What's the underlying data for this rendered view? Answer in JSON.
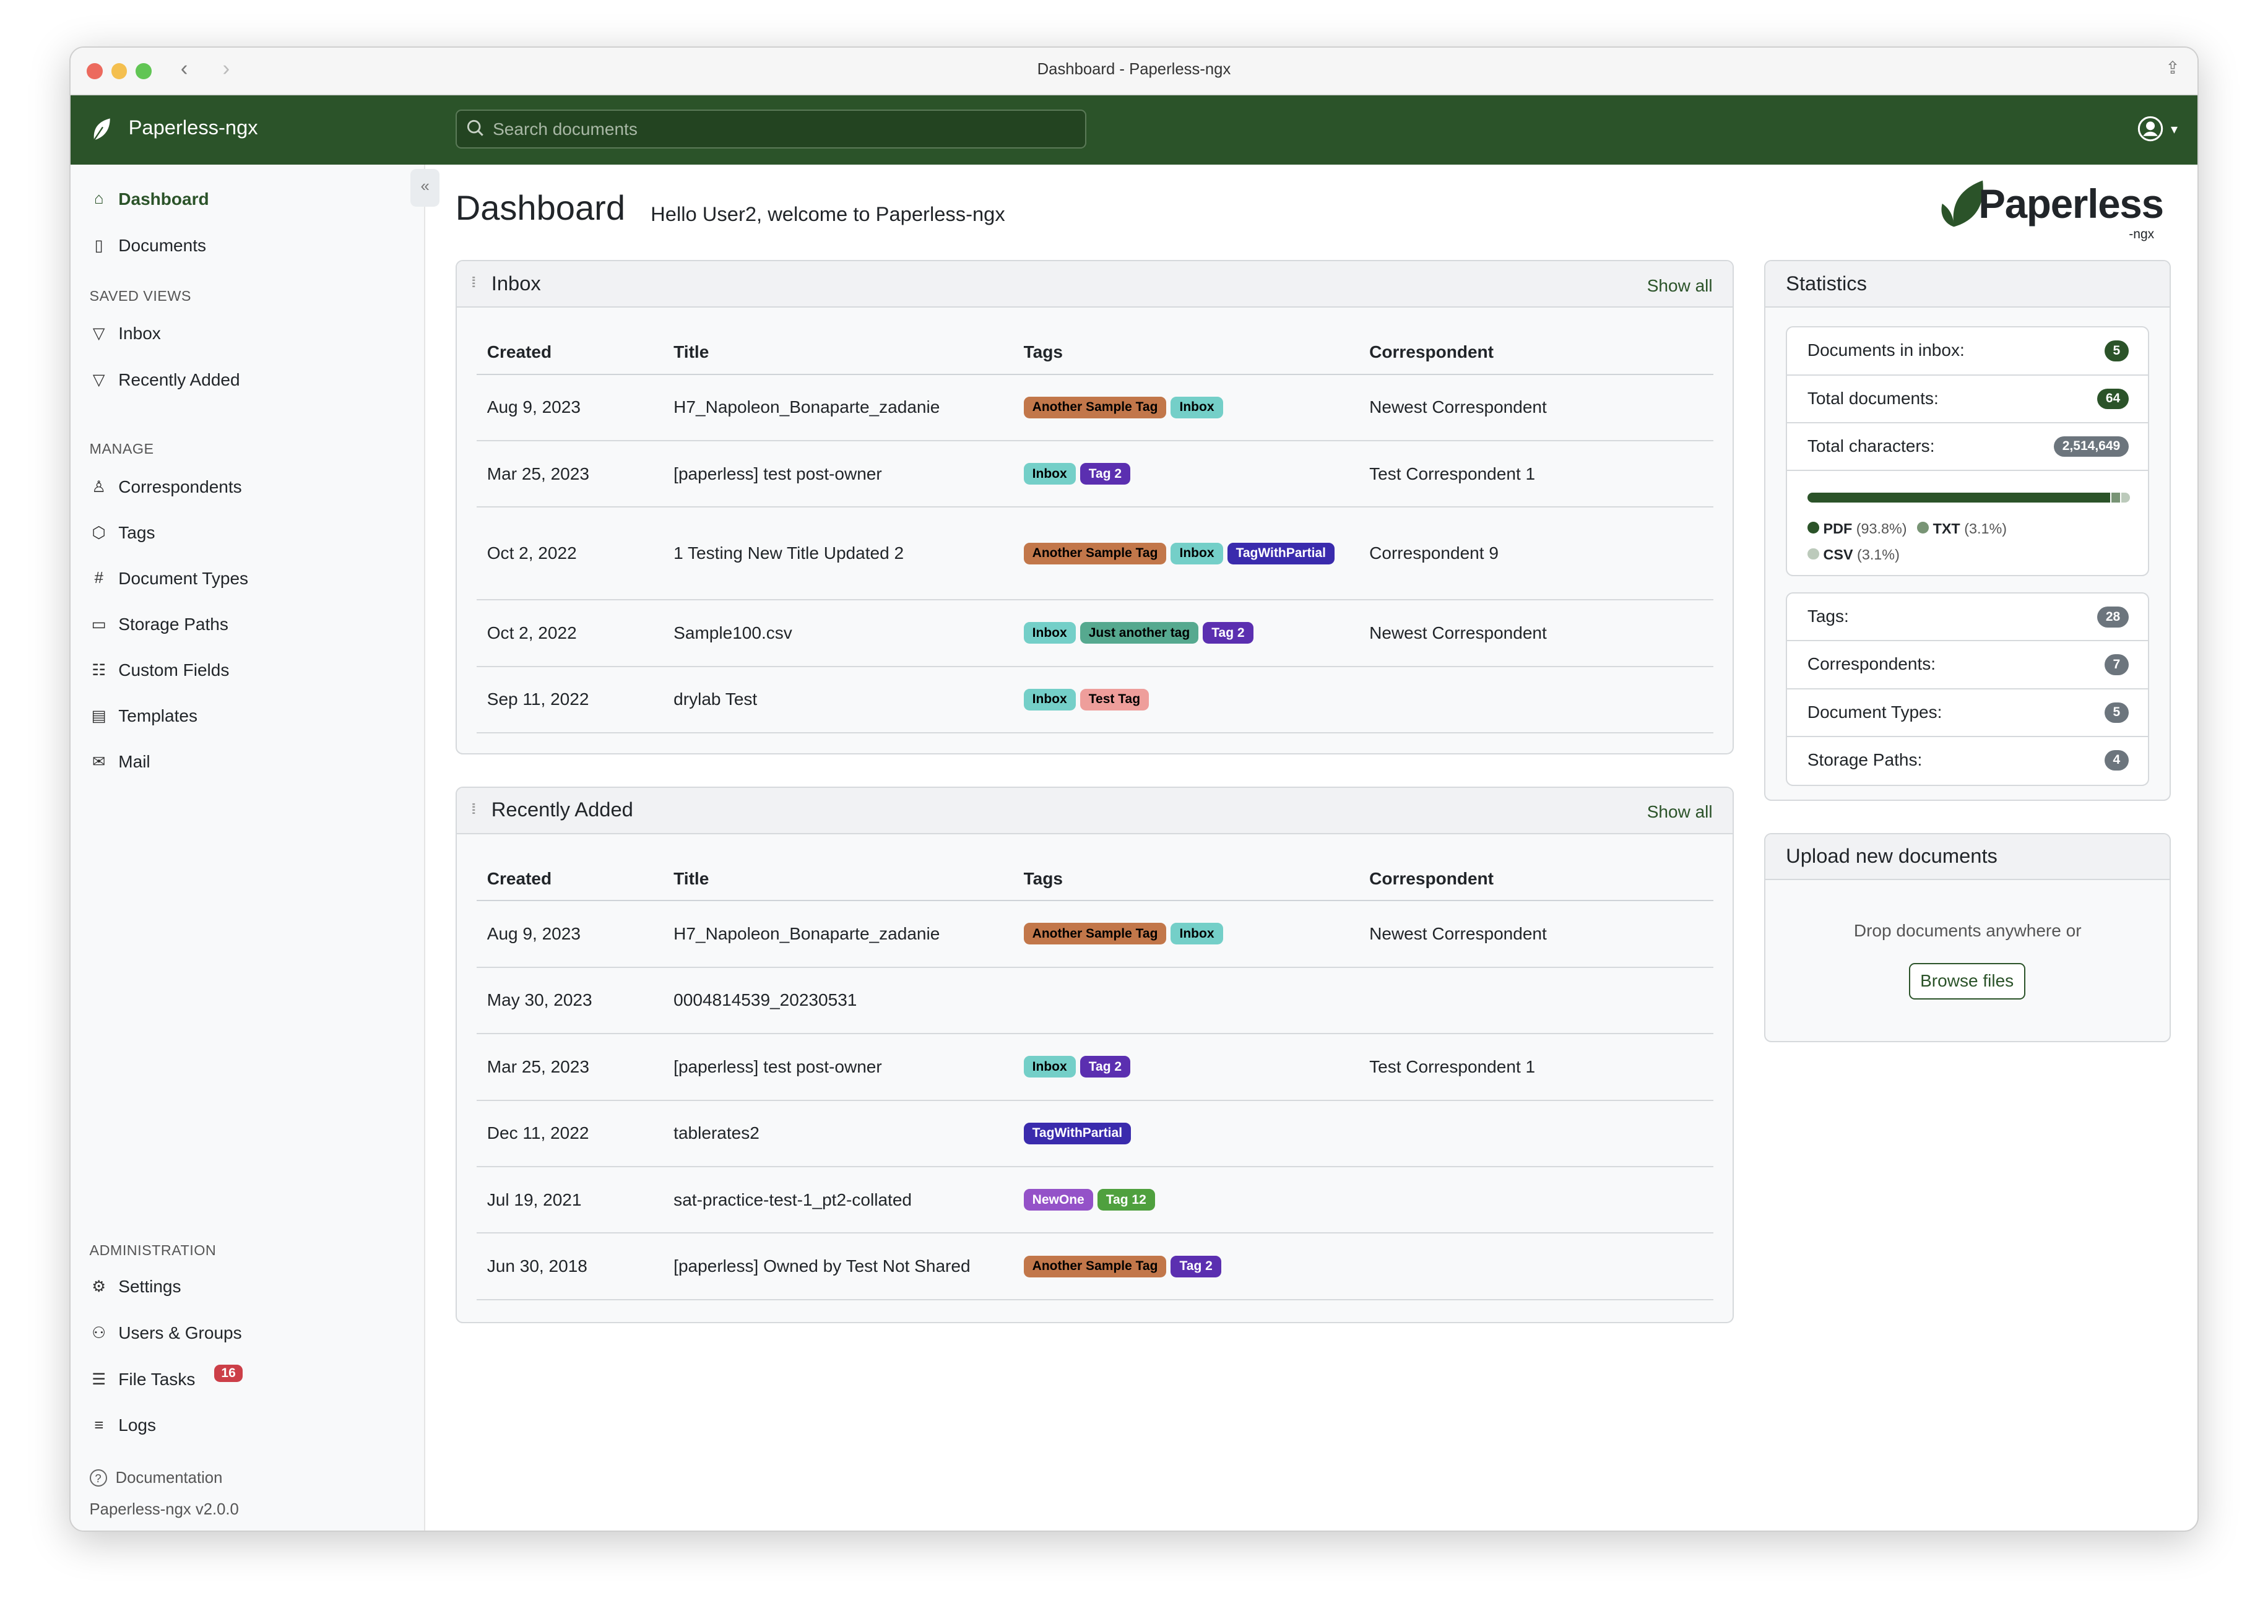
{
  "window": {
    "title": "Dashboard - Paperless-ngx"
  },
  "topbar": {
    "brand": "Paperless-ngx",
    "search_placeholder": "Search documents"
  },
  "sidebar": {
    "main": [
      {
        "label": "Dashboard",
        "icon": "house-icon",
        "active": true
      },
      {
        "label": "Documents",
        "icon": "files-icon"
      }
    ],
    "saved_views_heading": "SAVED VIEWS",
    "saved_views": [
      {
        "label": "Inbox",
        "icon": "funnel-icon"
      },
      {
        "label": "Recently Added",
        "icon": "funnel-icon"
      }
    ],
    "manage_heading": "MANAGE",
    "manage": [
      {
        "label": "Correspondents",
        "icon": "person-icon"
      },
      {
        "label": "Tags",
        "icon": "tags-icon"
      },
      {
        "label": "Document Types",
        "icon": "hash-icon"
      },
      {
        "label": "Storage Paths",
        "icon": "folder-icon"
      },
      {
        "label": "Custom Fields",
        "icon": "ui-radios-icon"
      },
      {
        "label": "Templates",
        "icon": "file-text-icon"
      },
      {
        "label": "Mail",
        "icon": "envelope-icon"
      }
    ],
    "admin_heading": "ADMINISTRATION",
    "admin": [
      {
        "label": "Settings",
        "icon": "gear-icon"
      },
      {
        "label": "Users & Groups",
        "icon": "people-icon"
      },
      {
        "label": "File Tasks",
        "icon": "list-task-icon",
        "badge": "16"
      },
      {
        "label": "Logs",
        "icon": "text-left-icon"
      }
    ],
    "documentation": "Documentation",
    "version": "Paperless-ngx v2.0.0"
  },
  "main": {
    "title": "Dashboard",
    "welcome": "Hello User2, welcome to Paperless-ngx",
    "logo_text": "Paperless",
    "logo_sub": "-ngx"
  },
  "tag_colors": {
    "Another Sample Tag": [
      "#c2774a",
      "#000"
    ],
    "Inbox": [
      "#74cfc8",
      "#000"
    ],
    "Tag 2": [
      "#5b2fb0",
      "#fff"
    ],
    "TagWithPartial": [
      "#3a2bad",
      "#fff"
    ],
    "Just another tag": [
      "#56a98f",
      "#000"
    ],
    "Test Tag": [
      "#ee9e9b",
      "#000"
    ],
    "NewOne": [
      "#9452c8",
      "#fff"
    ],
    "Tag 12": [
      "#4fa03e",
      "#fff"
    ]
  },
  "inbox": {
    "title": "Inbox",
    "show_all": "Show all",
    "columns": [
      "Created",
      "Title",
      "Tags",
      "Correspondent"
    ],
    "rows": [
      {
        "created": "Aug 9, 2023",
        "title": "H7_Napoleon_Bonaparte_zadanie",
        "tags": [
          "Another Sample Tag",
          "Inbox"
        ],
        "correspondent": "Newest Correspondent"
      },
      {
        "created": "Mar 25, 2023",
        "title": "[paperless] test post-owner",
        "tags": [
          "Inbox",
          "Tag 2"
        ],
        "correspondent": "Test Correspondent 1"
      },
      {
        "created": "Oct 2, 2022",
        "title": "1 Testing New Title Updated 2",
        "tags": [
          "Another Sample Tag",
          "Inbox",
          "TagWithPartial"
        ],
        "correspondent": "Correspondent 9"
      },
      {
        "created": "Oct 2, 2022",
        "title": "Sample100.csv",
        "tags": [
          "Inbox",
          "Just another tag",
          "Tag 2"
        ],
        "correspondent": "Newest Correspondent"
      },
      {
        "created": "Sep 11, 2022",
        "title": "drylab Test",
        "tags": [
          "Inbox",
          "Test Tag"
        ],
        "correspondent": ""
      }
    ]
  },
  "recent": {
    "title": "Recently Added",
    "show_all": "Show all",
    "columns": [
      "Created",
      "Title",
      "Tags",
      "Correspondent"
    ],
    "rows": [
      {
        "created": "Aug 9, 2023",
        "title": "H7_Napoleon_Bonaparte_zadanie",
        "tags": [
          "Another Sample Tag",
          "Inbox"
        ],
        "correspondent": "Newest Correspondent"
      },
      {
        "created": "May 30, 2023",
        "title": "0004814539_20230531",
        "tags": [],
        "correspondent": ""
      },
      {
        "created": "Mar 25, 2023",
        "title": "[paperless] test post-owner",
        "tags": [
          "Inbox",
          "Tag 2"
        ],
        "correspondent": "Test Correspondent 1"
      },
      {
        "created": "Dec 11, 2022",
        "title": "tablerates2",
        "tags": [
          "TagWithPartial"
        ],
        "correspondent": ""
      },
      {
        "created": "Jul 19, 2021",
        "title": "sat-practice-test-1_pt2-collated",
        "tags": [
          "NewOne",
          "Tag 12"
        ],
        "correspondent": ""
      },
      {
        "created": "Jun 30, 2018",
        "title": "[paperless] Owned by Test Not Shared",
        "tags": [
          "Another Sample Tag",
          "Tag 2"
        ],
        "correspondent": ""
      }
    ]
  },
  "statistics": {
    "title": "Statistics",
    "top": [
      {
        "label": "Documents in inbox:",
        "value": "5",
        "color": "#2b5329"
      },
      {
        "label": "Total documents:",
        "value": "64",
        "color": "#2b5329"
      },
      {
        "label": "Total characters:",
        "value": "2,514,649",
        "color": "#6c757d"
      }
    ],
    "file_types": [
      {
        "name": "PDF",
        "pct": "(93.8%)",
        "value": 93.8,
        "color": "#2b5329"
      },
      {
        "name": "TXT",
        "pct": "(3.1%)",
        "value": 3.1,
        "color": "#789475"
      },
      {
        "name": "CSV",
        "pct": "(3.1%)",
        "value": 3.1,
        "color": "#bccabb"
      }
    ],
    "bottom": [
      {
        "label": "Tags:",
        "value": "28"
      },
      {
        "label": "Correspondents:",
        "value": "7"
      },
      {
        "label": "Document Types:",
        "value": "5"
      },
      {
        "label": "Storage Paths:",
        "value": "4"
      }
    ]
  },
  "upload": {
    "title": "Upload new documents",
    "hint": "Drop documents anywhere or",
    "browse": "Browse files"
  }
}
